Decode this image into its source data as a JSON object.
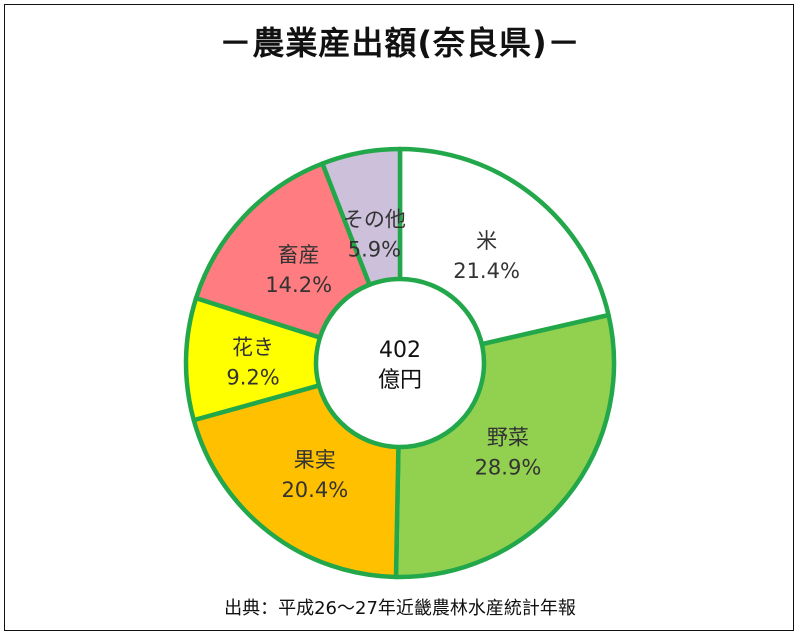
{
  "chart_data": {
    "type": "pie",
    "variant": "donut",
    "title": "－農業産出額(奈良県)－",
    "center_value": "402",
    "center_unit": "億円",
    "slices": [
      {
        "label": "米",
        "value": 21.4,
        "value_text": "21.4%",
        "color": "#ffffff"
      },
      {
        "label": "野菜",
        "value": 28.9,
        "value_text": "28.9%",
        "color": "#92d050"
      },
      {
        "label": "果実",
        "value": 20.4,
        "value_text": "20.4%",
        "color": "#ffc000"
      },
      {
        "label": "花き",
        "value": 9.2,
        "value_text": "9.2%",
        "color": "#ffff00"
      },
      {
        "label": "畜産",
        "value": 14.2,
        "value_text": "14.2%",
        "color": "#ff7c80"
      },
      {
        "label": "その他",
        "value": 5.9,
        "value_text": "5.9%",
        "color": "#ccc0da"
      }
    ],
    "border_color": "#22a84a",
    "source": "出典：平成26～27年近畿農林水産統計年報"
  }
}
